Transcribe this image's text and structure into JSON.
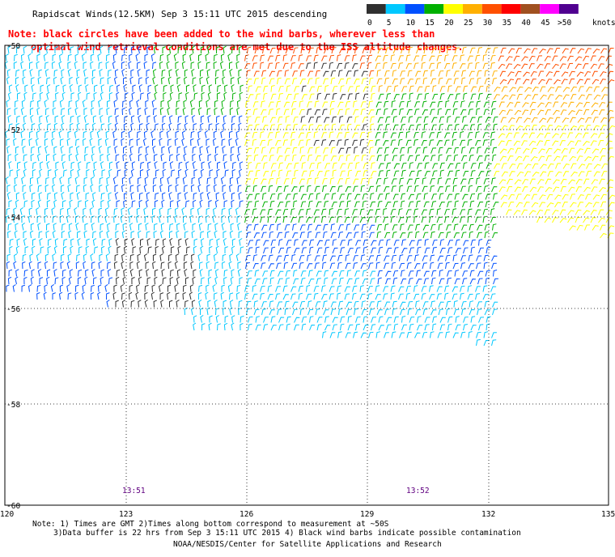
{
  "header": {
    "title": "Rapidscat Winds(12.5KM) Sep  3 15:11 UTC 2015 descending",
    "note_line1": "Note: black circles have been added to the wind barbs, wherever less than",
    "note_line2": "optimal wind retrieval conditions are met due to the ISS altitude changes."
  },
  "legend": {
    "unit": "knots",
    "stops": [
      {
        "label": "0",
        "color": "#303030"
      },
      {
        "label": "5",
        "color": "#00c8ff"
      },
      {
        "label": "10",
        "color": "#0050ff"
      },
      {
        "label": "15",
        "color": "#00b000"
      },
      {
        "label": "20",
        "color": "#ffff00"
      },
      {
        "label": "25",
        "color": "#ffb000"
      },
      {
        "label": "30",
        "color": "#ff5000"
      },
      {
        "label": "35",
        "color": "#ff0000"
      },
      {
        "label": "40",
        "color": "#a05020"
      },
      {
        "label": "45",
        "color": "#ff00ff"
      },
      {
        "label": ">50",
        "color": "#500090"
      }
    ]
  },
  "axes": {
    "lat_labels": [
      "-50",
      "-52",
      "-54",
      "-56",
      "-58",
      "-60"
    ],
    "lon_labels": [
      "120",
      "123",
      "126",
      "129",
      "132",
      "135"
    ]
  },
  "times": [
    {
      "label": "13:51"
    },
    {
      "label": "13:52"
    }
  ],
  "footer": {
    "note1": "Note: 1) Times are GMT 2)Times along bottom correspond to measurement at ~50S",
    "note2": "3)Data buffer is 22 hrs from Sep  3 15:11 UTC 2015 4) Black wind barbs indicate possible contamination",
    "credit": "NOAA/NESDIS/Center for Satellite Applications and Research"
  },
  "colors": {
    "note_red": "#ff0000",
    "time_purple": "#600080",
    "grid": "#000000"
  }
}
